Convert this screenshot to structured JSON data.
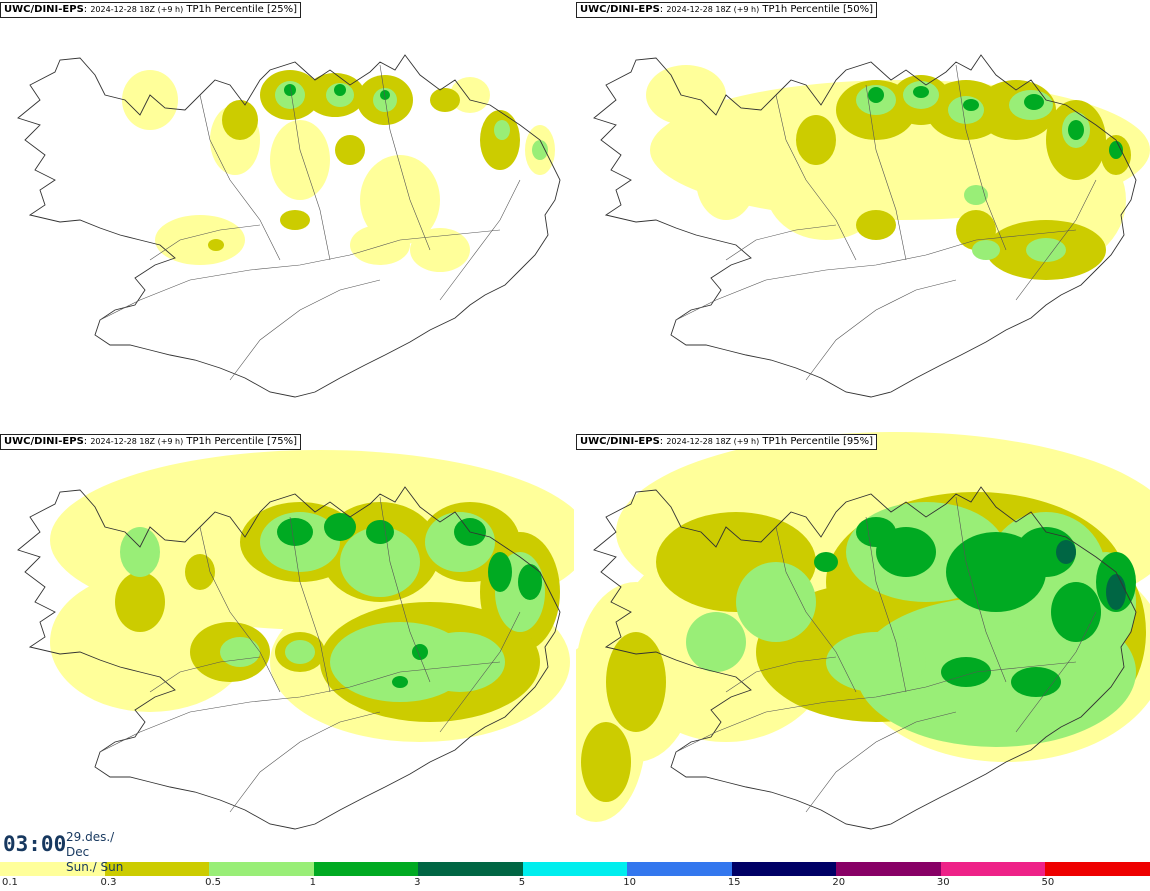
{
  "panels": [
    {
      "model": "UWC/DINI-EPS",
      "run": "2024-12-28 18Z (+9 h)",
      "field": "TP1h Percentile [25%]",
      "percentile": 25
    },
    {
      "model": "UWC/DINI-EPS",
      "run": "2024-12-28 18Z (+9 h)",
      "field": "TP1h Percentile [50%]",
      "percentile": 50
    },
    {
      "model": "UWC/DINI-EPS",
      "run": "2024-12-28 18Z (+9 h)",
      "field": "TP1h Percentile [75%]",
      "percentile": 75
    },
    {
      "model": "UWC/DINI-EPS",
      "run": "2024-12-28 18Z (+9 h)",
      "field": "TP1h Percentile [95%]",
      "percentile": 95
    }
  ],
  "valid_time": {
    "time": "03:00",
    "date": "29.des./ Dec",
    "day": "Sun./ Sun"
  },
  "legend": {
    "labels": [
      "0.1",
      "0.3",
      "0.5",
      "1",
      "3",
      "5",
      "10",
      "15",
      "20",
      "30",
      "50"
    ],
    "colors": [
      "#ffff9a",
      "#cccc00",
      "#99ee77",
      "#00aa22",
      "#006644",
      "#00eeee",
      "#3377ee",
      "#000066",
      "#880066",
      "#ee2288",
      "#ee0000"
    ]
  },
  "map_colors": {
    "coast": "#333333",
    "roads": "#555555"
  }
}
